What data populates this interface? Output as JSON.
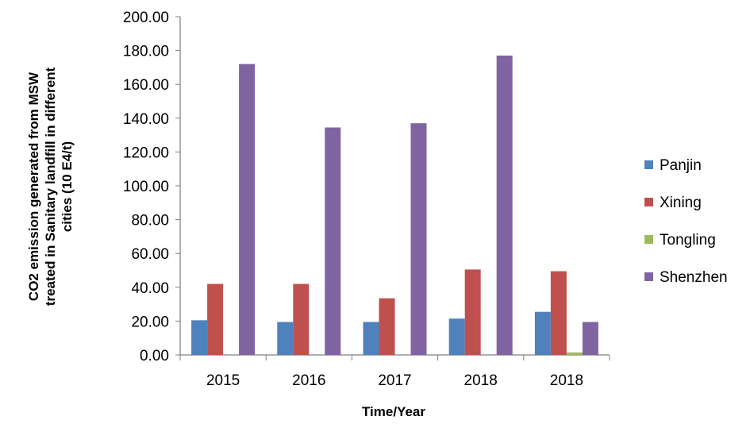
{
  "chart_data": {
    "type": "bar",
    "title": "",
    "xlabel": "Time/Year",
    "ylabel_lines": [
      "CO2 emission generated from MSW",
      "treated in Sanitary landfill in different",
      "cities (10 E4/t)"
    ],
    "categories": [
      "2015",
      "2016",
      "2017",
      "2018",
      "2018"
    ],
    "ylim": [
      0,
      200
    ],
    "y_ticks": [
      "0.00",
      "20.00",
      "40.00",
      "60.00",
      "80.00",
      "100.00",
      "120.00",
      "140.00",
      "160.00",
      "180.00",
      "200.00"
    ],
    "grid": false,
    "legend_position": "right",
    "series": [
      {
        "name": "Panjin",
        "color": "#4f81bd",
        "values": [
          20.5,
          19.5,
          19.5,
          21.5,
          25.5
        ]
      },
      {
        "name": "Xining",
        "color": "#c0504d",
        "values": [
          42.0,
          42.0,
          33.5,
          50.5,
          49.5
        ]
      },
      {
        "name": "Tongling",
        "color": "#9bbb59",
        "values": [
          0,
          0,
          0,
          0,
          1.5
        ]
      },
      {
        "name": "Shenzhen",
        "color": "#8064a2",
        "values": [
          172.0,
          134.5,
          137.0,
          177.0,
          19.5
        ]
      }
    ]
  }
}
